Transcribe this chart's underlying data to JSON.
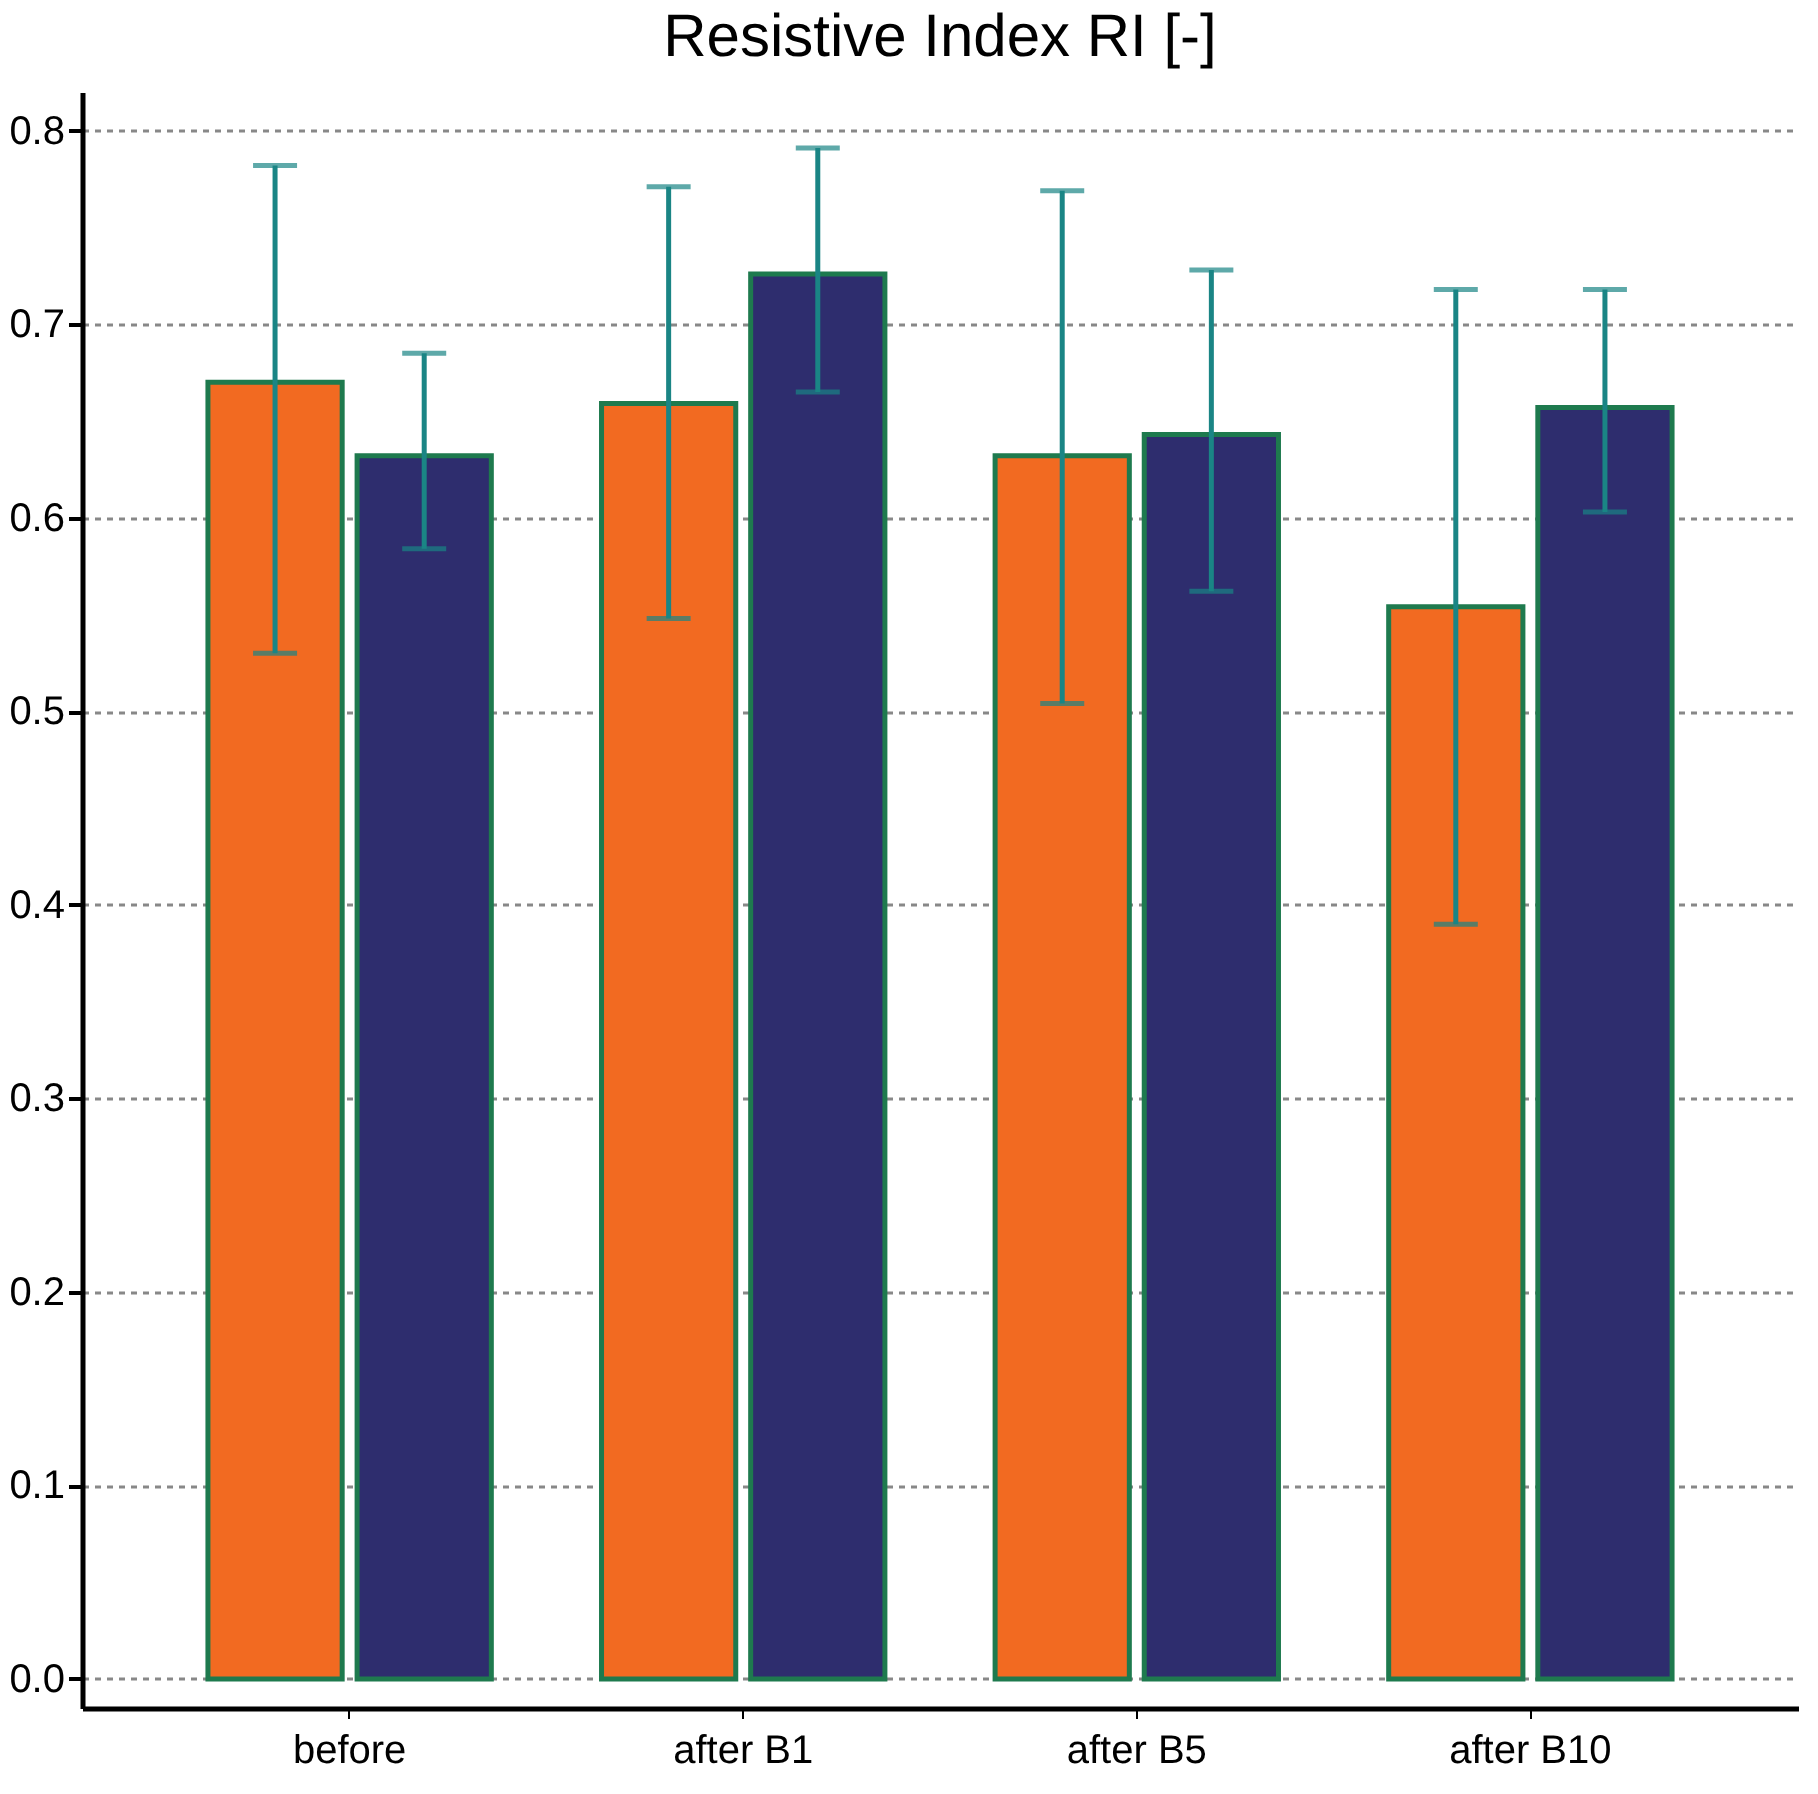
{
  "chart_data": {
    "type": "bar",
    "title": "Resistive Index RI [-]",
    "categories": [
      "before",
      "after B1",
      "after B5",
      "after B10"
    ],
    "series": [
      {
        "color": "#f26a21",
        "values": [
          0.67,
          0.659,
          0.632,
          0.554
        ],
        "errors": [
          [
            0.53,
            0.782
          ],
          [
            0.548,
            0.771
          ],
          [
            0.504,
            0.769
          ],
          [
            0.39,
            0.718
          ]
        ]
      },
      {
        "color": "#2e2d6e",
        "values": [
          0.632,
          0.726,
          0.643,
          0.657
        ],
        "errors": [
          [
            0.584,
            0.685
          ],
          [
            0.665,
            0.791
          ],
          [
            0.562,
            0.728
          ],
          [
            0.603,
            0.718
          ]
        ]
      }
    ],
    "ylim": [
      -0.015,
      0.82
    ],
    "yticks": [
      {
        "value": 0,
        "label": "0.0"
      },
      0.1,
      0.2,
      0.3,
      0.4,
      0.5,
      0.6,
      0.7,
      0.8
    ],
    "grid": "y",
    "legend": false
  }
}
